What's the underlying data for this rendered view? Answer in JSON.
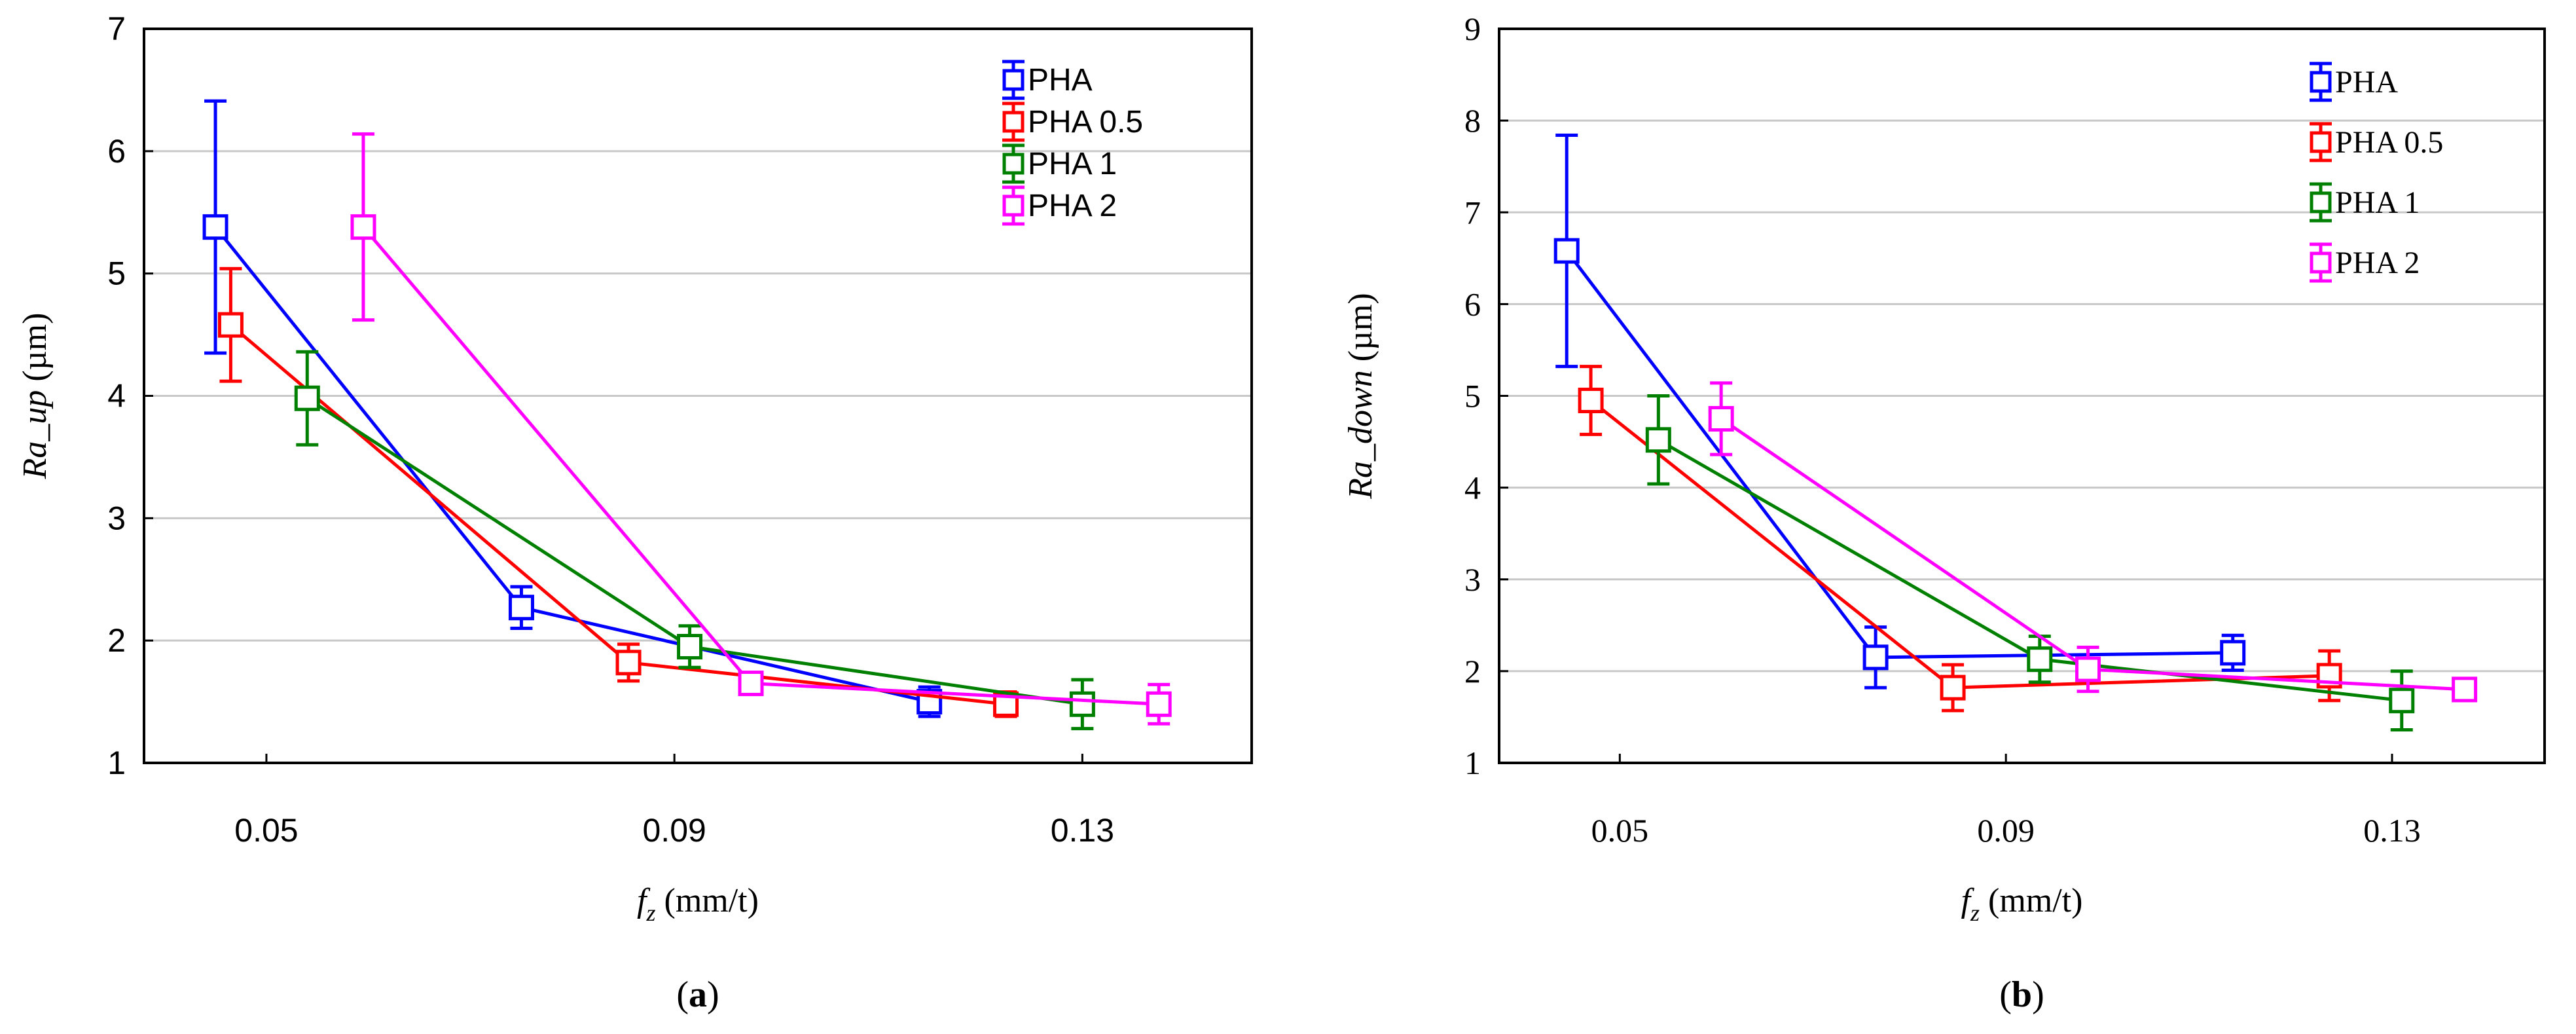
{
  "chart_data": [
    {
      "id": "a",
      "type": "line",
      "panel_label": "a",
      "ylabel_var": "Ra_up",
      "ylabel_unit": "(µm)",
      "xlabel_var": "f",
      "xlabel_sub": "z",
      "xlabel_unit": "(mm/t)",
      "xlim": [
        0.038,
        0.1466
      ],
      "ylim": [
        1,
        7
      ],
      "yticks": [
        "1",
        "2",
        "3",
        "4",
        "5",
        "6",
        "7"
      ],
      "xticks": [
        "0.05",
        "0.09",
        "0.13"
      ],
      "grid": "horizontal",
      "legend_position": "top-right",
      "series": [
        {
          "name": "PHA",
          "color": "#0000ff",
          "x": [
            0.045,
            0.075,
            0.115
          ],
          "y": [
            5.38,
            2.27,
            1.5
          ],
          "err": [
            1.03,
            0.17,
            0.12
          ]
        },
        {
          "name": "PHA 0.5",
          "color": "#ff0000",
          "x": [
            0.0465,
            0.0855,
            0.1225
          ],
          "y": [
            4.58,
            1.82,
            1.48
          ],
          "err": [
            0.46,
            0.15,
            0.1
          ]
        },
        {
          "name": "PHA 1",
          "color": "#008000",
          "x": [
            0.054,
            0.0915,
            0.13
          ],
          "y": [
            3.98,
            1.95,
            1.48
          ],
          "err": [
            0.38,
            0.17,
            0.2
          ]
        },
        {
          "name": "PHA 2",
          "color": "#ff00ff",
          "x": [
            0.0595,
            0.0975,
            0.1375
          ],
          "y": [
            5.38,
            1.65,
            1.48
          ],
          "err": [
            0.76,
            0.06,
            0.16
          ]
        }
      ]
    },
    {
      "id": "b",
      "type": "line",
      "panel_label": "b",
      "ylabel_var": "Ra_down",
      "ylabel_unit": "(µm)",
      "xlabel_var": "f",
      "xlabel_sub": "z",
      "xlabel_unit": "(mm/t)",
      "xlim": [
        0.0375,
        0.1458
      ],
      "ylim": [
        1,
        9
      ],
      "yticks": [
        "1",
        "2",
        "3",
        "4",
        "5",
        "6",
        "7",
        "8",
        "9"
      ],
      "xticks": [
        "0.05",
        "0.09",
        "0.13"
      ],
      "grid": "horizontal",
      "legend_position": "top-right",
      "series": [
        {
          "name": "PHA",
          "color": "#0000ff",
          "x": [
            0.0445,
            0.0765,
            0.1135
          ],
          "y": [
            6.58,
            2.15,
            2.2
          ],
          "err": [
            1.26,
            0.33,
            0.19
          ]
        },
        {
          "name": "PHA 0.5",
          "color": "#ff0000",
          "x": [
            0.047,
            0.0845,
            0.1235
          ],
          "y": [
            4.95,
            1.82,
            1.95
          ],
          "err": [
            0.37,
            0.25,
            0.27
          ]
        },
        {
          "name": "PHA 1",
          "color": "#008000",
          "x": [
            0.054,
            0.0935,
            0.131
          ],
          "y": [
            4.52,
            2.13,
            1.68
          ],
          "err": [
            0.48,
            0.25,
            0.32
          ]
        },
        {
          "name": "PHA 2",
          "color": "#ff00ff",
          "x": [
            0.0605,
            0.0985,
            0.1375
          ],
          "y": [
            4.75,
            2.02,
            1.8
          ],
          "err": [
            0.39,
            0.24,
            0.08
          ]
        }
      ]
    }
  ]
}
